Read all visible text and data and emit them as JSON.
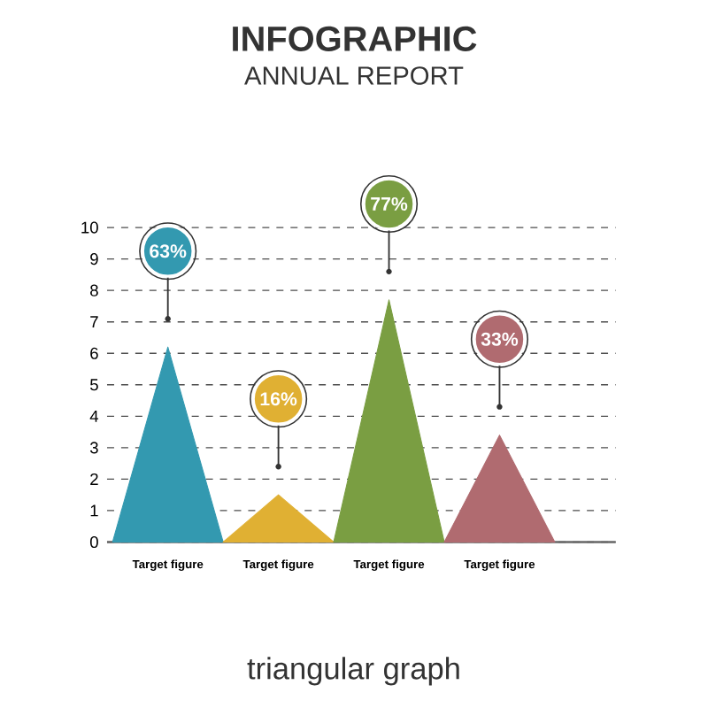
{
  "chart_data": {
    "type": "area",
    "title": "INFOGRAPHIC",
    "subtitle": "ANNUAL REPORT",
    "annotations": [
      "63%",
      "16%",
      "77%",
      "33%",
      "triangular graph"
    ],
    "categories": [
      null,
      "Target figure",
      null,
      "Target figure",
      null,
      "Target figure",
      null,
      "Target figure",
      null
    ],
    "series": [
      {
        "color": "#3399b0",
        "values": [
          0,
          6.2,
          0,
          null,
          null,
          null,
          null,
          null,
          null
        ]
      },
      {
        "color": "#e0b033",
        "values": [
          null,
          null,
          0,
          1.5,
          0,
          null,
          null,
          null,
          null
        ]
      },
      {
        "color": "#7a9e42",
        "values": [
          null,
          null,
          null,
          null,
          0,
          7.7,
          0,
          null,
          null
        ]
      },
      {
        "color": "#b06b70",
        "values": [
          null,
          null,
          null,
          null,
          null,
          null,
          0,
          3.4,
          0
        ]
      }
    ],
    "ylim": [
      0,
      10
    ],
    "yticks": [
      0,
      1,
      2,
      3,
      4,
      5,
      6,
      7,
      8,
      9,
      10
    ],
    "grid": "y"
  }
}
